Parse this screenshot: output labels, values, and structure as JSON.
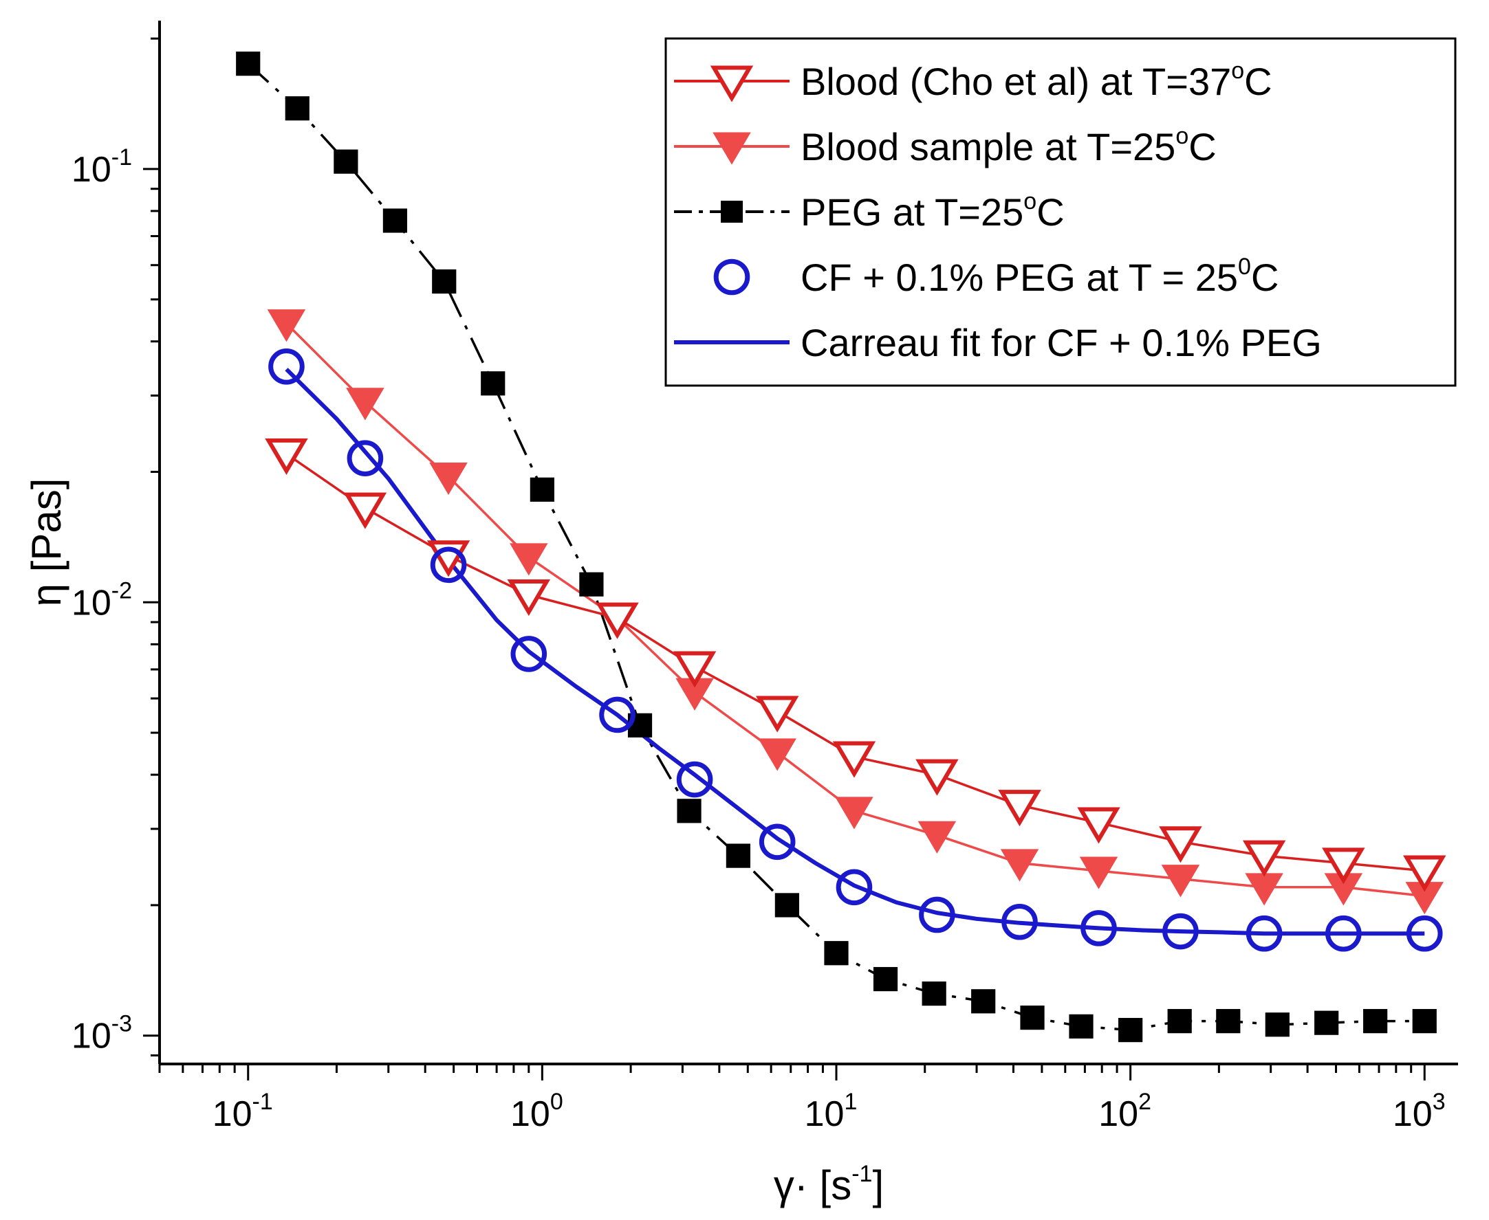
{
  "chart_data": {
    "type": "line",
    "title": "",
    "xlabel": {
      "symbol": "γ·",
      "unit_prefix": "[s",
      "unit_exp": "-1",
      "unit_suffix": "]"
    },
    "ylabel": {
      "symbol": "η",
      "unit": "[Pas]"
    },
    "xscale": "log",
    "yscale": "log",
    "xlim": [
      0.05,
      1300
    ],
    "ylim": [
      0.00086,
      0.22
    ],
    "x_ticks": [
      {
        "value": 0.1,
        "base": "10",
        "exp": "-1"
      },
      {
        "value": 1,
        "base": "10",
        "exp": "0"
      },
      {
        "value": 10,
        "base": "10",
        "exp": "1"
      },
      {
        "value": 100,
        "base": "10",
        "exp": "2"
      },
      {
        "value": 1000,
        "base": "10",
        "exp": "3"
      }
    ],
    "y_ticks": [
      {
        "value": 0.001,
        "base": "10",
        "exp": "-3"
      },
      {
        "value": 0.01,
        "base": "10",
        "exp": "-2"
      },
      {
        "value": 0.1,
        "base": "10",
        "exp": "-1"
      }
    ],
    "grid": false,
    "legend_position": "top-right",
    "series": [
      {
        "name": "Blood (Cho et al) at T=37",
        "name_sup": "o",
        "name_suffix": "C",
        "marker": "triangle-down-open",
        "color": "#d92020",
        "line": "solid",
        "x": [
          0.135,
          0.25,
          0.48,
          0.9,
          1.8,
          3.3,
          6.3,
          11.5,
          22,
          42,
          78,
          148,
          285,
          530,
          1000
        ],
        "y": [
          0.022,
          0.0165,
          0.0128,
          0.0104,
          0.0092,
          0.0071,
          0.0056,
          0.0044,
          0.004,
          0.0034,
          0.0031,
          0.0028,
          0.0026,
          0.0025,
          0.0024
        ]
      },
      {
        "name": "Blood sample at T=25",
        "name_sup": "o",
        "name_suffix": "C",
        "marker": "triangle-down-filled",
        "color": "#ee4a4a",
        "line": "solid",
        "x": [
          0.135,
          0.25,
          0.48,
          0.9,
          1.8,
          3.3,
          6.3,
          11.5,
          22,
          42,
          78,
          148,
          285,
          530,
          1000
        ],
        "y": [
          0.044,
          0.029,
          0.0195,
          0.0127,
          0.0092,
          0.0062,
          0.0045,
          0.0033,
          0.0029,
          0.0025,
          0.0024,
          0.0023,
          0.0022,
          0.0022,
          0.0021
        ]
      },
      {
        "name": "PEG at T=25",
        "name_sup": "o",
        "name_suffix": "C",
        "marker": "square-filled",
        "color": "#000000",
        "line": "dash-dot",
        "x": [
          0.1,
          0.147,
          0.215,
          0.316,
          0.464,
          0.68,
          1.0,
          1.47,
          2.15,
          3.16,
          4.64,
          6.8,
          10,
          14.7,
          21.5,
          31.6,
          46.4,
          68,
          100,
          147,
          215,
          316,
          464,
          680,
          1000
        ],
        "y": [
          0.175,
          0.138,
          0.104,
          0.076,
          0.055,
          0.032,
          0.0182,
          0.011,
          0.0052,
          0.0033,
          0.0026,
          0.002,
          0.00155,
          0.00135,
          0.00125,
          0.0012,
          0.0011,
          0.00105,
          0.00103,
          0.00108,
          0.00108,
          0.00106,
          0.00107,
          0.00108,
          0.00108
        ]
      },
      {
        "name": "CF + 0.1% PEG at T = 25",
        "name_sup": "0",
        "name_suffix": "C",
        "marker": "circle-open",
        "color": "#1a1acc",
        "line": "none",
        "x": [
          0.135,
          0.25,
          0.48,
          0.9,
          1.8,
          3.3,
          6.3,
          11.5,
          22,
          42,
          78,
          148,
          285,
          530,
          1000
        ],
        "y": [
          0.035,
          0.0215,
          0.0122,
          0.0076,
          0.0055,
          0.0039,
          0.0028,
          0.0022,
          0.0019,
          0.00183,
          0.00177,
          0.00174,
          0.00172,
          0.00172,
          0.00172
        ]
      },
      {
        "name": "Carreau fit for CF + 0.1% PEG",
        "name_sup": "",
        "name_suffix": "",
        "marker": "none",
        "color": "#1a1acc",
        "line": "solid",
        "x": [
          0.135,
          0.2,
          0.3,
          0.48,
          0.7,
          0.9,
          1.3,
          1.8,
          2.5,
          3.3,
          4.5,
          6.3,
          8.5,
          11.5,
          16,
          22,
          30,
          42,
          60,
          78,
          110,
          148,
          210,
          285,
          400,
          530,
          750,
          1000
        ],
        "y": [
          0.0345,
          0.0265,
          0.0193,
          0.0125,
          0.0091,
          0.0077,
          0.0064,
          0.0055,
          0.0046,
          0.004,
          0.0034,
          0.00285,
          0.0025,
          0.00222,
          0.00203,
          0.00192,
          0.00186,
          0.00182,
          0.00179,
          0.00177,
          0.00175,
          0.00174,
          0.00173,
          0.00172,
          0.00172,
          0.00172,
          0.00172,
          0.00172
        ]
      }
    ]
  }
}
